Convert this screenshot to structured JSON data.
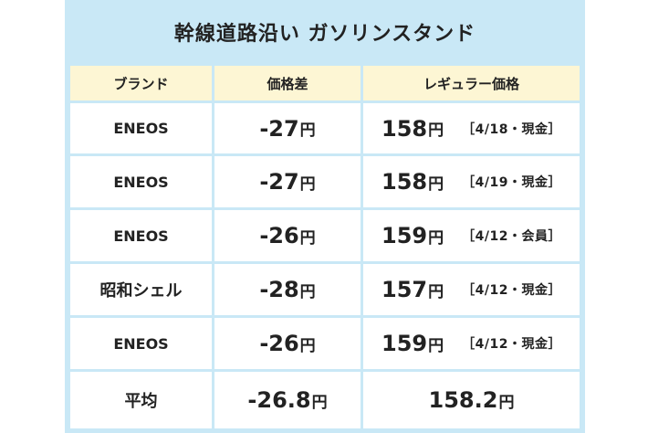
{
  "title": "幹線道路沿い ガソリンスタンド",
  "headers": {
    "brand": "ブランド",
    "diff": "価格差",
    "price": "レギュラー価格"
  },
  "rows": [
    {
      "brand": "ENEOS",
      "diff": "-27",
      "diff_unit": "円",
      "price": "158",
      "price_unit": "円",
      "note": "［4/18・現金］"
    },
    {
      "brand": "ENEOS",
      "diff": "-27",
      "diff_unit": "円",
      "price": "158",
      "price_unit": "円",
      "note": "［4/19・現金］"
    },
    {
      "brand": "ENEOS",
      "diff": "-26",
      "diff_unit": "円",
      "price": "159",
      "price_unit": "円",
      "note": "［4/12・会員］"
    },
    {
      "brand": "昭和シェル",
      "diff": "-28",
      "diff_unit": "円",
      "price": "157",
      "price_unit": "円",
      "note": "［4/12・現金］"
    },
    {
      "brand": "ENEOS",
      "diff": "-26",
      "diff_unit": "円",
      "price": "159",
      "price_unit": "円",
      "note": "［4/12・現金］"
    }
  ],
  "average": {
    "label": "平均",
    "diff": "-26.8",
    "diff_unit": "円",
    "price": "158.2",
    "price_unit": "円"
  },
  "colors": {
    "frame": "#c9e8f6",
    "header_bg": "#fdf6d4",
    "cell_bg": "#ffffff"
  }
}
